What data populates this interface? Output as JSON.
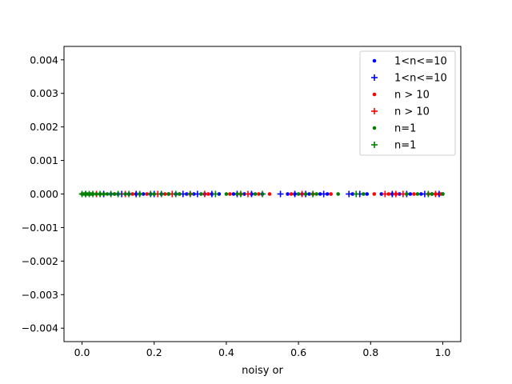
{
  "chart_data": {
    "type": "scatter",
    "title": "",
    "xlabel": "noisy or",
    "ylabel": "",
    "xlim": [
      -0.05,
      1.05
    ],
    "ylim": [
      -0.0044,
      0.0044
    ],
    "x_ticks": [
      0.0,
      0.2,
      0.4,
      0.6,
      0.8,
      1.0
    ],
    "x_tick_labels": [
      "0.0",
      "0.2",
      "0.4",
      "0.6",
      "0.8",
      "1.0"
    ],
    "y_ticks": [
      0.004,
      0.003,
      0.002,
      0.001,
      0.0,
      -0.001,
      -0.002,
      -0.003,
      -0.004
    ],
    "y_tick_labels": [
      "0.004",
      "0.003",
      "0.002",
      "0.001",
      "0.000",
      "−0.001",
      "−0.002",
      "−0.003",
      "−0.004"
    ],
    "grid": false,
    "legend_position": "top-right",
    "series": [
      {
        "name": "1<n<=10",
        "marker": "dot",
        "color": "#0000ff",
        "x": [
          0.02,
          0.05,
          0.08,
          0.1,
          0.13,
          0.15,
          0.17,
          0.19,
          0.22,
          0.24,
          0.26,
          0.29,
          0.31,
          0.34,
          0.36,
          0.38,
          0.42,
          0.45,
          0.47,
          0.5,
          0.57,
          0.59,
          0.61,
          0.63,
          0.66,
          0.68,
          0.75,
          0.79,
          0.83,
          0.86,
          0.88,
          0.91,
          0.94,
          0.97,
          0.99,
          1.0
        ],
        "y": [
          0,
          0,
          0,
          0,
          0,
          0,
          0,
          0,
          0,
          0,
          0,
          0,
          0,
          0,
          0,
          0,
          0,
          0,
          0,
          0,
          0,
          0,
          0,
          0,
          0,
          0,
          0,
          0,
          0,
          0,
          0,
          0,
          0,
          0,
          0,
          0
        ]
      },
      {
        "name": "1<n<=10",
        "marker": "plus",
        "color": "#0000ff",
        "x": [
          0.01,
          0.06,
          0.11,
          0.15,
          0.2,
          0.25,
          0.28,
          0.32,
          0.36,
          0.43,
          0.47,
          0.55,
          0.59,
          0.62,
          0.67,
          0.74,
          0.77,
          0.86,
          0.9,
          0.95,
          0.99
        ],
        "y": [
          0,
          0,
          0,
          0,
          0,
          0,
          0,
          0,
          0,
          0,
          0,
          0,
          0,
          0,
          0,
          0,
          0,
          0,
          0,
          0,
          0
        ]
      },
      {
        "name": "n > 10",
        "marker": "dot",
        "color": "#ff0000",
        "x": [
          0.03,
          0.09,
          0.14,
          0.18,
          0.23,
          0.27,
          0.3,
          0.35,
          0.41,
          0.44,
          0.49,
          0.52,
          0.58,
          0.64,
          0.69,
          0.81,
          0.85,
          0.87,
          0.92,
          0.96,
          0.98,
          0.995
        ],
        "y": [
          0,
          0,
          0,
          0,
          0,
          0,
          0,
          0,
          0,
          0,
          0,
          0,
          0,
          0,
          0,
          0,
          0,
          0,
          0,
          0,
          0,
          0
        ]
      },
      {
        "name": "n > 10",
        "marker": "plus",
        "color": "#ff0000",
        "x": [
          0.04,
          0.12,
          0.21,
          0.25,
          0.34,
          0.46,
          0.61,
          0.84,
          0.87,
          0.89,
          0.98
        ],
        "y": [
          0,
          0,
          0,
          0,
          0,
          0,
          0,
          0,
          0,
          0,
          0
        ]
      },
      {
        "name": "n=1",
        "marker": "dot",
        "color": "#008000",
        "x": [
          0.0,
          0.005,
          0.01,
          0.015,
          0.02,
          0.025,
          0.03,
          0.04,
          0.05,
          0.06,
          0.07,
          0.09,
          0.12,
          0.16,
          0.2,
          0.24,
          0.27,
          0.33,
          0.4,
          0.43,
          0.48,
          0.6,
          0.62,
          0.65,
          0.71,
          0.78,
          0.9,
          0.93,
          0.97,
          1.0
        ],
        "y": [
          0,
          0,
          0,
          0,
          0,
          0,
          0,
          0,
          0,
          0,
          0,
          0,
          0,
          0,
          0,
          0,
          0,
          0,
          0,
          0,
          0,
          0,
          0,
          0,
          0,
          0,
          0,
          0,
          0,
          0
        ]
      },
      {
        "name": "n=1",
        "marker": "plus",
        "color": "#008000",
        "x": [
          0.0,
          0.01,
          0.02,
          0.03,
          0.05,
          0.08,
          0.1,
          0.13,
          0.16,
          0.19,
          0.22,
          0.26,
          0.3,
          0.37,
          0.44,
          0.5,
          0.64,
          0.76,
          0.96
        ],
        "y": [
          0,
          0,
          0,
          0,
          0,
          0,
          0,
          0,
          0,
          0,
          0,
          0,
          0,
          0,
          0,
          0,
          0,
          0,
          0
        ]
      }
    ]
  }
}
